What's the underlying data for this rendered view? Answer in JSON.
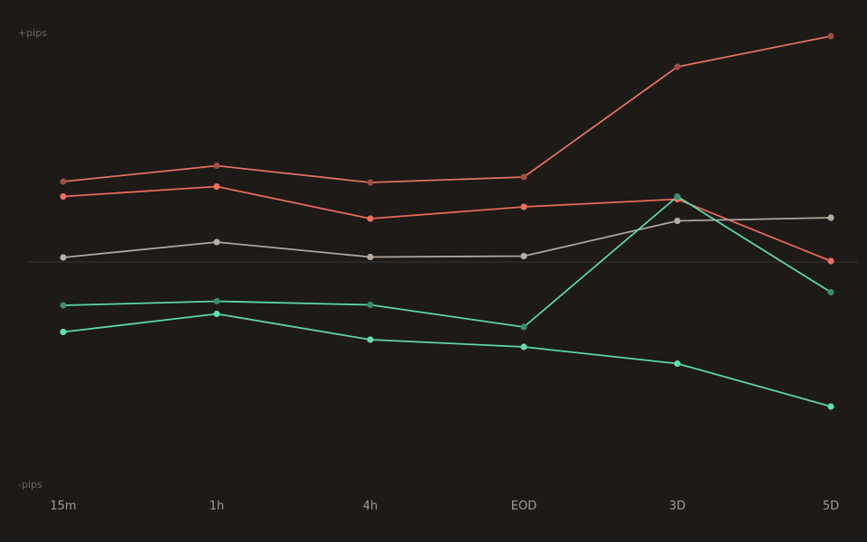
{
  "chart_data": {
    "type": "line",
    "x": [
      "15m",
      "1h",
      "4h",
      "EOD",
      "3D",
      "5D"
    ],
    "y_top_label": "+pips",
    "y_bottom_label": "-pips",
    "ylim": [
      -50,
      50
    ],
    "baseline": 0,
    "grid": false,
    "legend": "none",
    "series": [
      {
        "color": "#e07263",
        "point_color": "#9a4d42",
        "values": [
          17.8,
          21.3,
          17.6,
          18.8,
          43.2,
          50.0
        ]
      },
      {
        "color": "#e8695a",
        "point_color": "#f07060",
        "values": [
          14.5,
          16.7,
          9.6,
          12.2,
          13.9,
          0.2
        ]
      },
      {
        "color": "#b0a59c",
        "point_color": "#b8ada4",
        "values": [
          1.0,
          4.4,
          1.1,
          1.3,
          9.1,
          9.8
        ]
      },
      {
        "color": "#5fd4ae",
        "point_color": "#3d8a70",
        "values": [
          -9.6,
          -8.7,
          -9.5,
          -14.4,
          14.5,
          -6.7
        ]
      },
      {
        "color": "#5fd4ae",
        "point_color": "#63dcb3",
        "values": [
          -15.5,
          -11.5,
          -17.2,
          -18.8,
          -22.5,
          -32.0
        ]
      }
    ]
  }
}
